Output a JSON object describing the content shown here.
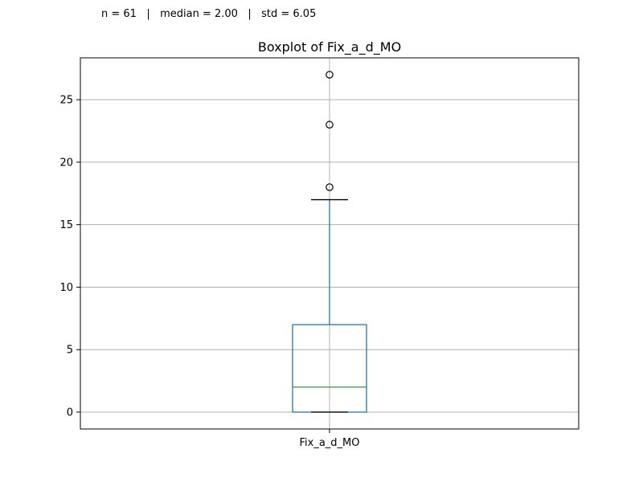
{
  "header": {
    "stats_text": "n = 61   |   median = 2.00   |   std = 6.05"
  },
  "chart_data": {
    "type": "box",
    "title": "Boxplot of Fix_a_d_MO",
    "categories": [
      "Fix_a_d_MO"
    ],
    "xlabel": "",
    "ylabel": "",
    "ylim": [
      -1.35,
      28.35
    ],
    "yticks": [
      0,
      5,
      10,
      15,
      20,
      25
    ],
    "grid": true,
    "boxes": [
      {
        "name": "Fix_a_d_MO",
        "whisker_low": 0,
        "q1": 0,
        "median": 2,
        "q3": 7,
        "whisker_high": 17,
        "outliers": [
          18,
          23,
          27
        ]
      }
    ],
    "colors": {
      "box": "#1f77b4",
      "median": "#2ca02c",
      "cap": "#000000",
      "grid": "#b0b0b0",
      "outlier_edge": "#000000"
    }
  }
}
